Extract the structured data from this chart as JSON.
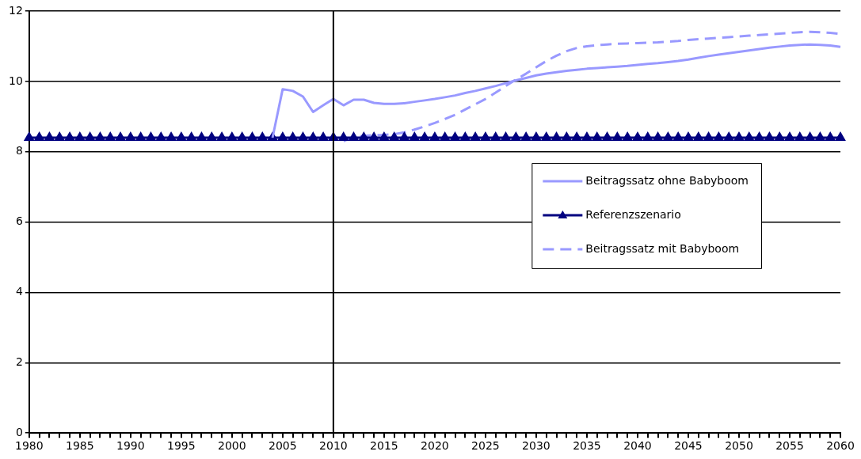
{
  "chart_data": {
    "type": "line",
    "categories": [
      "1980",
      null,
      null,
      null,
      null,
      "1985",
      null,
      null,
      null,
      null,
      "1990",
      null,
      null,
      null,
      null,
      "1995",
      null,
      null,
      null,
      null,
      "2000",
      null,
      null,
      null,
      null,
      "2005",
      null,
      null,
      null,
      null,
      "2010",
      null,
      null,
      null,
      null,
      "2015",
      null,
      null,
      null,
      null,
      "2020",
      null,
      null,
      null,
      null,
      "2025",
      null,
      null,
      null,
      null,
      "2030",
      null,
      null,
      null,
      null,
      "2035",
      null,
      null,
      null,
      null,
      "2040",
      null,
      null,
      null,
      null,
      "2045",
      null,
      null,
      null,
      null,
      "2050",
      null,
      null,
      null,
      null,
      "2055",
      null,
      null,
      null,
      null,
      "2060"
    ],
    "series": [
      {
        "name": "Beitragssatz ohne Babyboom",
        "color": "#9999ff",
        "line_style": "solid",
        "marker": "none",
        "values": [
          null,
          null,
          null,
          null,
          null,
          null,
          null,
          null,
          null,
          null,
          null,
          null,
          null,
          null,
          null,
          null,
          null,
          null,
          null,
          null,
          null,
          null,
          null,
          null,
          8.4,
          9.78,
          9.73,
          9.57,
          9.13,
          9.32,
          9.5,
          9.32,
          9.48,
          9.48,
          9.39,
          9.36,
          9.36,
          9.38,
          9.42,
          9.46,
          9.5,
          9.55,
          9.6,
          9.67,
          9.73,
          9.8,
          9.87,
          9.95,
          10.03,
          10.1,
          10.17,
          10.22,
          10.26,
          10.3,
          10.33,
          10.36,
          10.38,
          10.4,
          10.42,
          10.44,
          10.47,
          10.5,
          10.52,
          10.55,
          10.58,
          10.62,
          10.67,
          10.72,
          10.76,
          10.8,
          10.84,
          10.88,
          10.92,
          10.96,
          10.99,
          11.02,
          11.04,
          11.05,
          11.04,
          11.02,
          10.98
        ]
      },
      {
        "name": "Referenzszenario",
        "color": "#000080",
        "line_style": "solid",
        "marker": "triangle",
        "values": [
          8.4,
          8.4,
          8.4,
          8.4,
          8.4,
          8.4,
          8.4,
          8.4,
          8.4,
          8.4,
          8.4,
          8.4,
          8.4,
          8.4,
          8.4,
          8.4,
          8.4,
          8.4,
          8.4,
          8.4,
          8.4,
          8.4,
          8.4,
          8.4,
          8.4,
          8.4,
          8.4,
          8.4,
          8.4,
          8.4,
          8.4,
          8.4,
          8.4,
          8.4,
          8.4,
          8.4,
          8.4,
          8.4,
          8.4,
          8.4,
          8.4,
          8.4,
          8.4,
          8.4,
          8.4,
          8.4,
          8.4,
          8.4,
          8.4,
          8.4,
          8.4,
          8.4,
          8.4,
          8.4,
          8.4,
          8.4,
          8.4,
          8.4,
          8.4,
          8.4,
          8.4,
          8.4,
          8.4,
          8.4,
          8.4,
          8.4,
          8.4,
          8.4,
          8.4,
          8.4,
          8.4,
          8.4,
          8.4,
          8.4,
          8.4,
          8.4,
          8.4,
          8.4,
          8.4,
          8.4,
          8.4
        ]
      },
      {
        "name": "Beitragssatz mit Babyboom",
        "color": "#9999ff",
        "line_style": "dashed",
        "marker": "none",
        "values": [
          null,
          null,
          null,
          null,
          null,
          null,
          null,
          null,
          null,
          null,
          null,
          null,
          null,
          null,
          null,
          null,
          null,
          null,
          null,
          null,
          null,
          null,
          null,
          null,
          null,
          null,
          null,
          null,
          null,
          null,
          null,
          8.3,
          8.42,
          8.45,
          8.47,
          8.48,
          8.5,
          8.55,
          8.63,
          8.72,
          8.82,
          8.93,
          9.05,
          9.2,
          9.35,
          9.5,
          9.68,
          9.87,
          10.05,
          10.22,
          10.4,
          10.58,
          10.73,
          10.86,
          10.95,
          11.0,
          11.03,
          11.05,
          11.07,
          11.08,
          11.09,
          11.1,
          11.11,
          11.13,
          11.15,
          11.18,
          11.2,
          11.22,
          11.24,
          11.26,
          11.28,
          11.3,
          11.32,
          11.34,
          11.36,
          11.38,
          11.4,
          11.41,
          11.4,
          11.38,
          11.35
        ]
      }
    ],
    "ylim": [
      0,
      12
    ],
    "yticks": [
      0,
      2,
      4,
      6,
      8,
      10,
      12
    ],
    "grid": "y",
    "legend": "right",
    "ref_lines": [
      {
        "axis": "x",
        "value": "2010",
        "color": "#000000"
      }
    ]
  }
}
